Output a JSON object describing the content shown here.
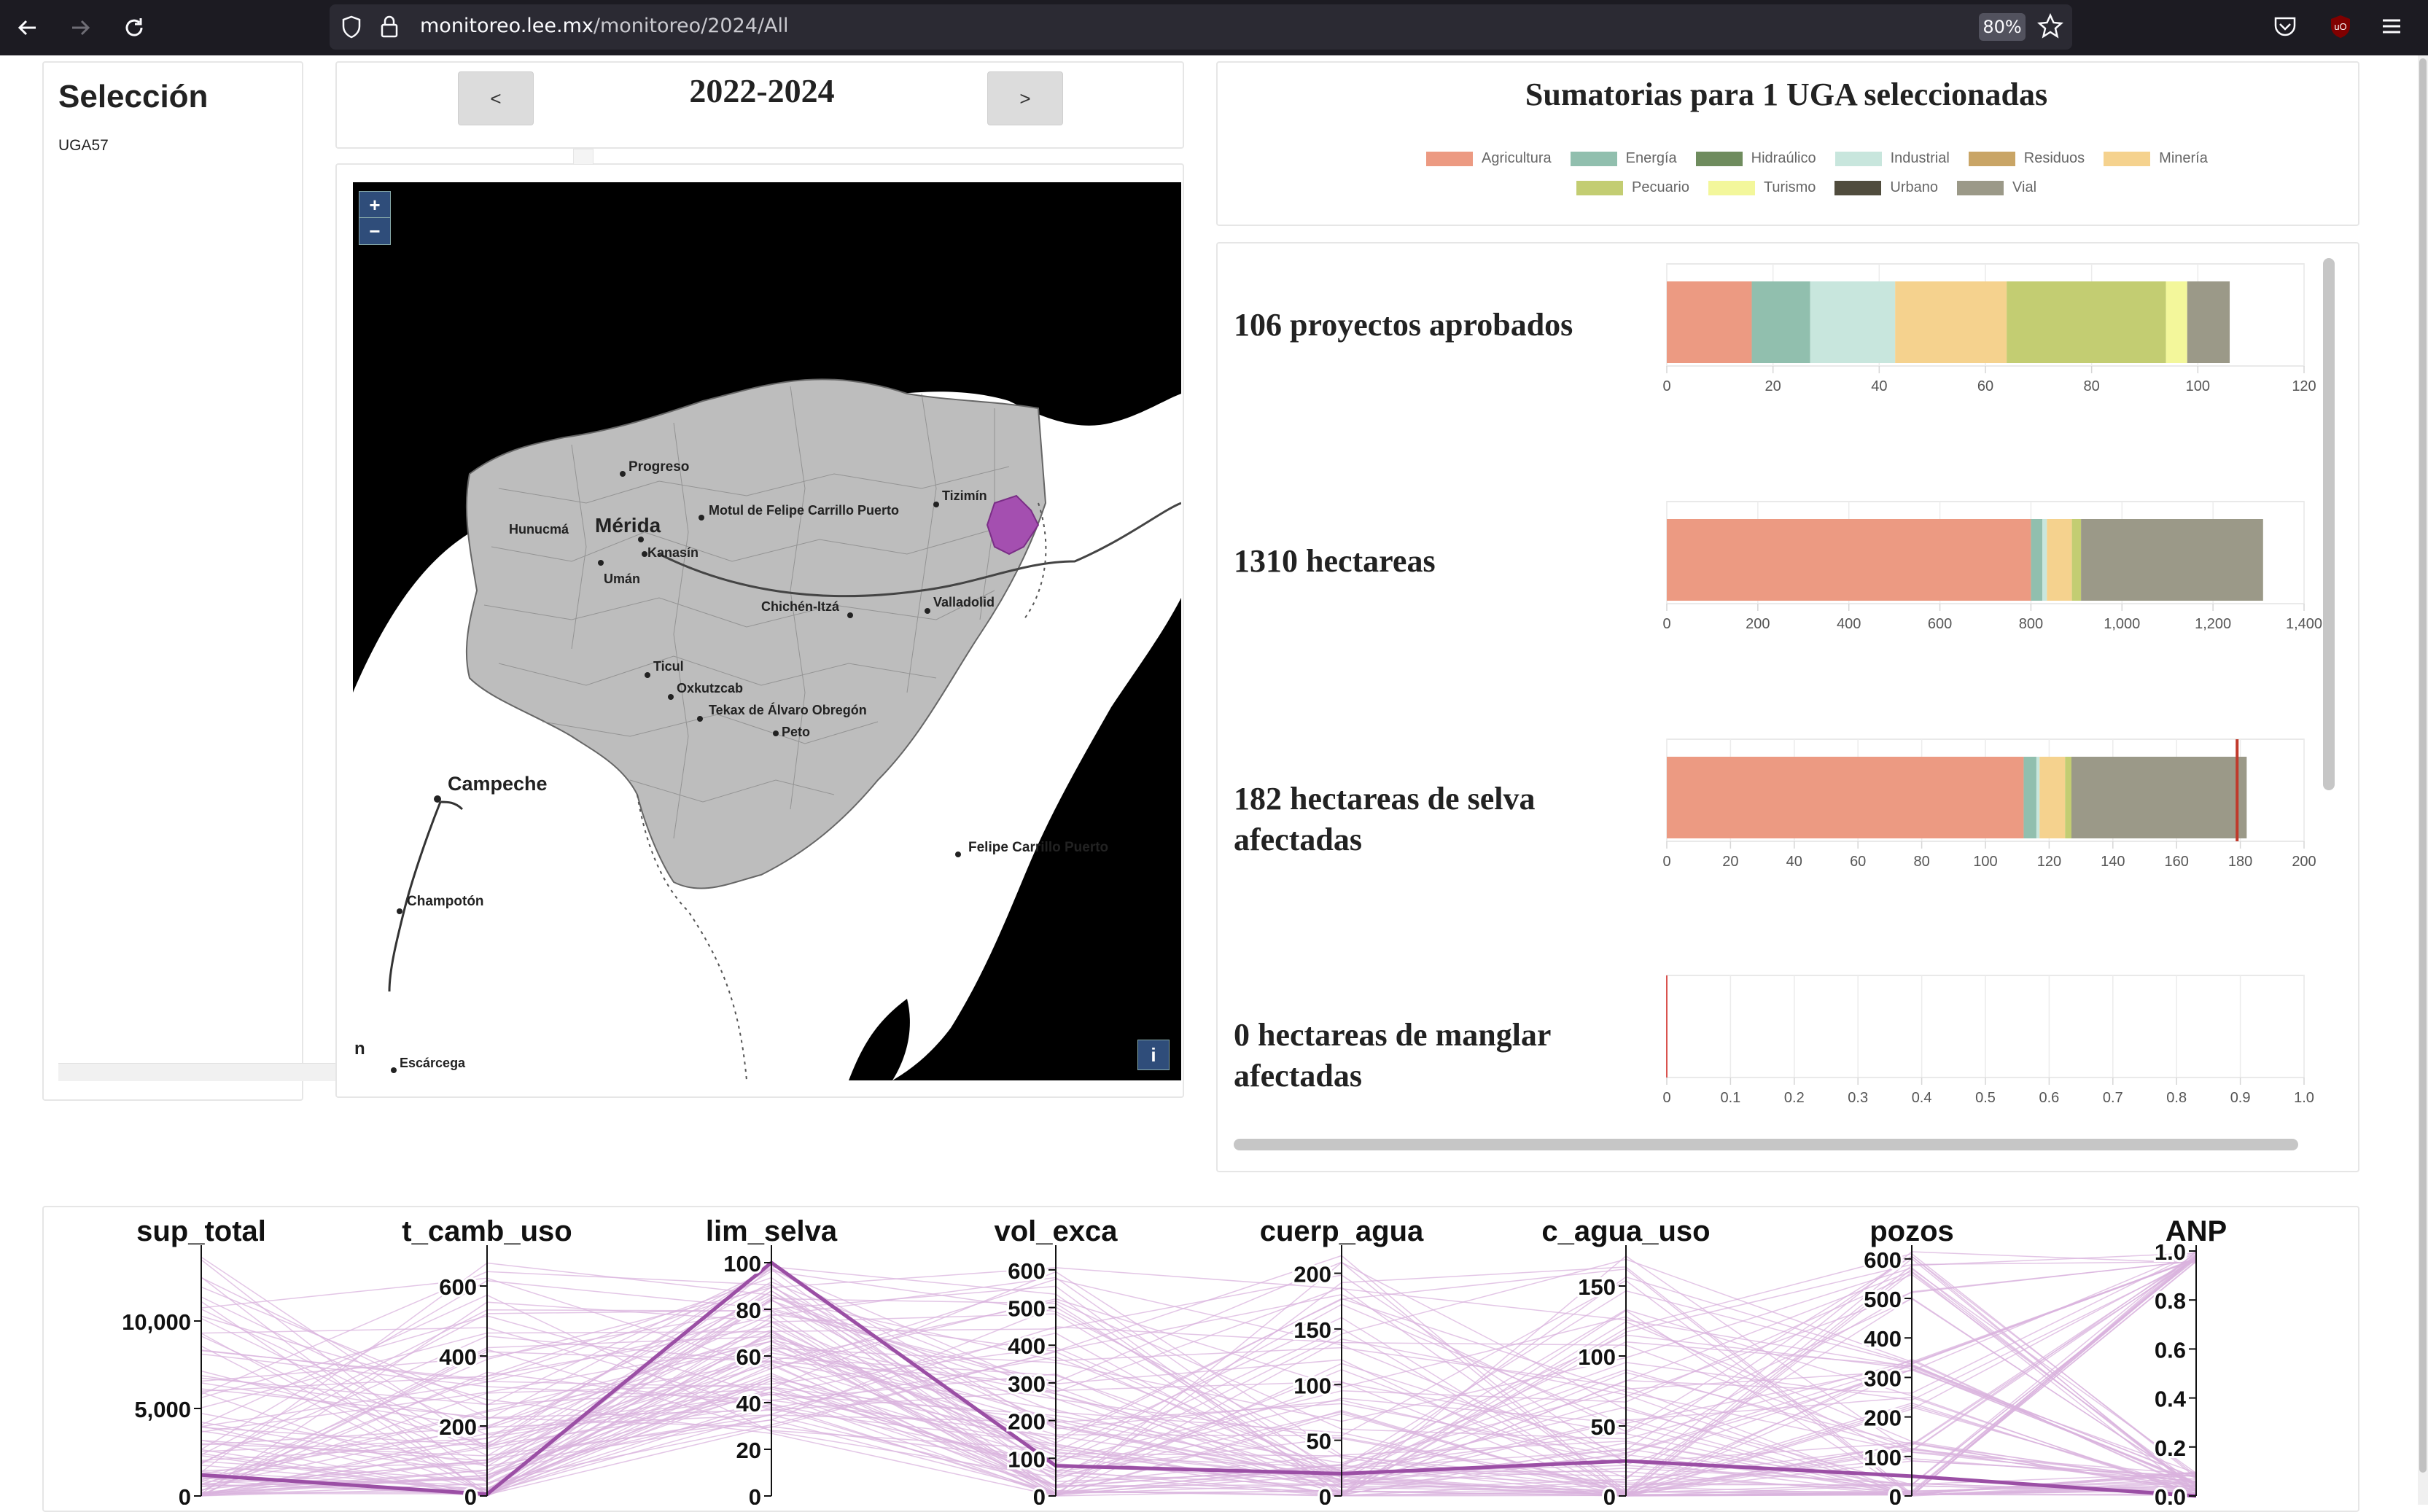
{
  "browser": {
    "url_host": "monitoreo.lee.mx",
    "url_path": "/monitoreo/2024/All",
    "zoom": "80%"
  },
  "selection": {
    "title": "Selección",
    "items": [
      "UGA57"
    ]
  },
  "period": {
    "prev_label": "<",
    "next_label": ">",
    "label": "2022-2024"
  },
  "map": {
    "zoom_in": "+",
    "zoom_out": "−",
    "info": "i",
    "partial_label": "n",
    "places": [
      "Progreso",
      "Mérida",
      "Hunucmá",
      "Kanasín",
      "Umán",
      "Motul de Felipe Carrillo Puerto",
      "Tizimín",
      "Valladolid",
      "Chichén-Itzá",
      "Ticul",
      "Oxkutzcab",
      "Tekax de Álvaro Obregón",
      "Peto",
      "Campeche",
      "Champotón",
      "Felipe Carrillo Puerto",
      "Escárcega"
    ]
  },
  "summary": {
    "title": "Sumatorias para 1 UGA seleccionadas",
    "legend": [
      {
        "name": "Agricultura",
        "color": "#ec9a82"
      },
      {
        "name": "Energía",
        "color": "#91bfae"
      },
      {
        "name": "Hidraúlico",
        "color": "#6f8c5e"
      },
      {
        "name": "Industrial",
        "color": "#c8e6dd"
      },
      {
        "name": "Residuos",
        "color": "#c9a566"
      },
      {
        "name": "Minería",
        "color": "#f5d28e"
      },
      {
        "name": "Pecuario",
        "color": "#c3cd72"
      },
      {
        "name": "Turismo",
        "color": "#f3f79b"
      },
      {
        "name": "Urbano",
        "color": "#504c3d"
      },
      {
        "name": "Vial",
        "color": "#9b9988"
      }
    ],
    "metrics": [
      {
        "label": "106 proyectos aprobados"
      },
      {
        "label": "1310 hectareas"
      },
      {
        "label": "182 hectareas de selva afectadas"
      },
      {
        "label": "0 hectareas de manglar afectadas"
      }
    ]
  },
  "chart_data": [
    {
      "type": "bar",
      "orientation": "horizontal-stacked",
      "title": "106 proyectos aprobados",
      "xlim": [
        0,
        120
      ],
      "ticks": [
        0,
        20,
        40,
        60,
        80,
        100,
        120
      ],
      "tick_labels": [
        "0",
        "20",
        "40",
        "60",
        "80",
        "100",
        "120"
      ],
      "series": [
        {
          "name": "Agricultura",
          "value": 16
        },
        {
          "name": "Energía",
          "value": 11
        },
        {
          "name": "Industrial",
          "value": 16
        },
        {
          "name": "Minería",
          "value": 21
        },
        {
          "name": "Pecuario",
          "value": 30
        },
        {
          "name": "Turismo",
          "value": 4
        },
        {
          "name": "Vial",
          "value": 8
        }
      ]
    },
    {
      "type": "bar",
      "orientation": "horizontal-stacked",
      "title": "1310 hectareas",
      "xlim": [
        0,
        1400
      ],
      "ticks": [
        0,
        200,
        400,
        600,
        800,
        1000,
        1200,
        1400
      ],
      "tick_labels": [
        "0",
        "200",
        "400",
        "600",
        "800",
        "1,000",
        "1,200",
        "1,400"
      ],
      "series": [
        {
          "name": "Agricultura",
          "value": 800
        },
        {
          "name": "Energía",
          "value": 25
        },
        {
          "name": "Industrial",
          "value": 10
        },
        {
          "name": "Minería",
          "value": 55
        },
        {
          "name": "Pecuario",
          "value": 20
        },
        {
          "name": "Vial",
          "value": 400
        }
      ]
    },
    {
      "type": "bar",
      "orientation": "horizontal-stacked",
      "title": "182 hectareas de selva afectadas",
      "xlim": [
        0,
        200
      ],
      "ticks": [
        0,
        20,
        40,
        60,
        80,
        100,
        120,
        140,
        160,
        180,
        200
      ],
      "tick_labels": [
        "0",
        "20",
        "40",
        "60",
        "80",
        "100",
        "120",
        "140",
        "160",
        "180",
        "200"
      ],
      "reference_line": 179,
      "series": [
        {
          "name": "Agricultura",
          "value": 112
        },
        {
          "name": "Energía",
          "value": 4
        },
        {
          "name": "Industrial",
          "value": 1
        },
        {
          "name": "Minería",
          "value": 8
        },
        {
          "name": "Pecuario",
          "value": 2
        },
        {
          "name": "Vial",
          "value": 55
        }
      ]
    },
    {
      "type": "bar",
      "orientation": "horizontal-stacked",
      "title": "0 hectareas de manglar afectadas",
      "xlim": [
        0,
        1
      ],
      "ticks": [
        0,
        0.1,
        0.2,
        0.3,
        0.4,
        0.5,
        0.6,
        0.7,
        0.8,
        0.9,
        1.0
      ],
      "tick_labels": [
        "0",
        "0.1",
        "0.2",
        "0.3",
        "0.4",
        "0.5",
        "0.6",
        "0.7",
        "0.8",
        "0.9",
        "1.0"
      ],
      "series": []
    },
    {
      "type": "parallel-coordinates",
      "axes": [
        {
          "name": "sup_total",
          "ticks": [
            0,
            5000,
            10000
          ],
          "tick_labels": [
            "0",
            "5,000",
            "10,000"
          ],
          "range": [
            0,
            14000
          ]
        },
        {
          "name": "t_camb_uso",
          "ticks": [
            0,
            200,
            400,
            600
          ],
          "tick_labels": [
            "0",
            "200",
            "400",
            "600"
          ],
          "range": [
            0,
            700
          ]
        },
        {
          "name": "lim_selva",
          "ticks": [
            0,
            20,
            40,
            60,
            80,
            100
          ],
          "tick_labels": [
            "0",
            "20",
            "40",
            "60",
            "80",
            "100"
          ],
          "range": [
            0,
            105
          ]
        },
        {
          "name": "vol_exca",
          "ticks": [
            0,
            100,
            200,
            300,
            400,
            500,
            600
          ],
          "tick_labels": [
            "0",
            "100",
            "200",
            "300",
            "400",
            "500",
            "600"
          ],
          "range": [
            0,
            650
          ]
        },
        {
          "name": "cuerp_agua",
          "ticks": [
            0,
            50,
            100,
            150,
            200
          ],
          "tick_labels": [
            "0",
            "50",
            "100",
            "150",
            "200"
          ],
          "range": [
            0,
            220
          ]
        },
        {
          "name": "c_agua_uso",
          "ticks": [
            0,
            50,
            100,
            150
          ],
          "tick_labels": [
            "0",
            "50",
            "100",
            "150"
          ],
          "range": [
            0,
            175
          ]
        },
        {
          "name": "pozos",
          "ticks": [
            0,
            100,
            200,
            300,
            400,
            500,
            600
          ],
          "tick_labels": [
            "0",
            "100",
            "200",
            "300",
            "400",
            "500",
            "600"
          ],
          "range": [
            0,
            620
          ]
        },
        {
          "name": "ANP",
          "ticks": [
            0,
            0.2,
            0.4,
            0.6,
            0.8,
            1.0
          ],
          "tick_labels": [
            "0.0",
            "0.2",
            "0.4",
            "0.6",
            "0.8",
            "1.0"
          ],
          "range": [
            0,
            1
          ]
        }
      ],
      "highlighted": [
        1200,
        5,
        100,
        80,
        20,
        25,
        50,
        0
      ]
    }
  ]
}
